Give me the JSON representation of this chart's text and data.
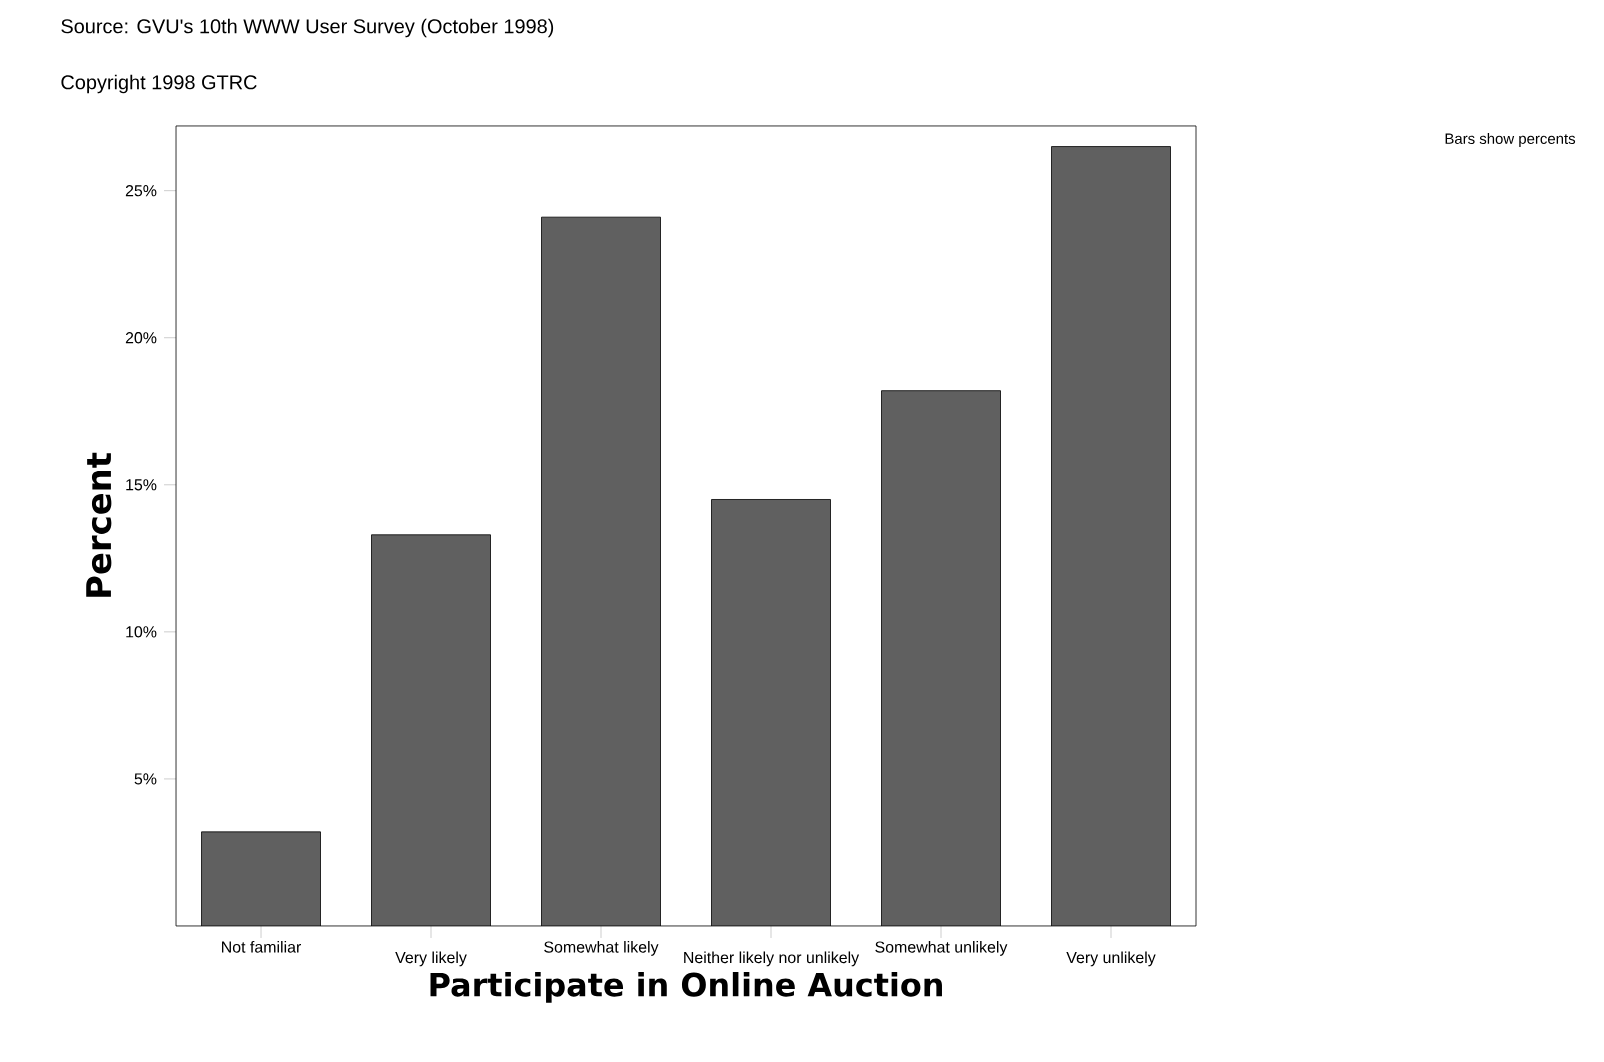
{
  "chart_data": {
    "type": "bar",
    "annotations": [
      "Source: GVU's 10th WWW User Survey (October 1998)",
      "Copyright 1998 GTRC",
      "Bars show percents"
    ],
    "xlabel": "Participate in Online Auction",
    "ylabel": "Percent",
    "categories": [
      "Not familiar",
      "Very likely",
      "Somewhat likely",
      "Neither likely nor unlikely",
      "Somewhat unlikely",
      "Very unlikely"
    ],
    "values": [
      3.2,
      13.3,
      24.1,
      14.5,
      18.2,
      26.5
    ],
    "color": "#606060",
    "ylim": [
      0,
      27.2
    ],
    "yticks": [
      {
        "value": 5,
        "label": "5%"
      },
      {
        "value": 10,
        "label": "10%"
      },
      {
        "value": 15,
        "label": "15%"
      },
      {
        "value": 20,
        "label": "20%"
      },
      {
        "value": 25,
        "label": "25%"
      }
    ],
    "grid": false
  }
}
